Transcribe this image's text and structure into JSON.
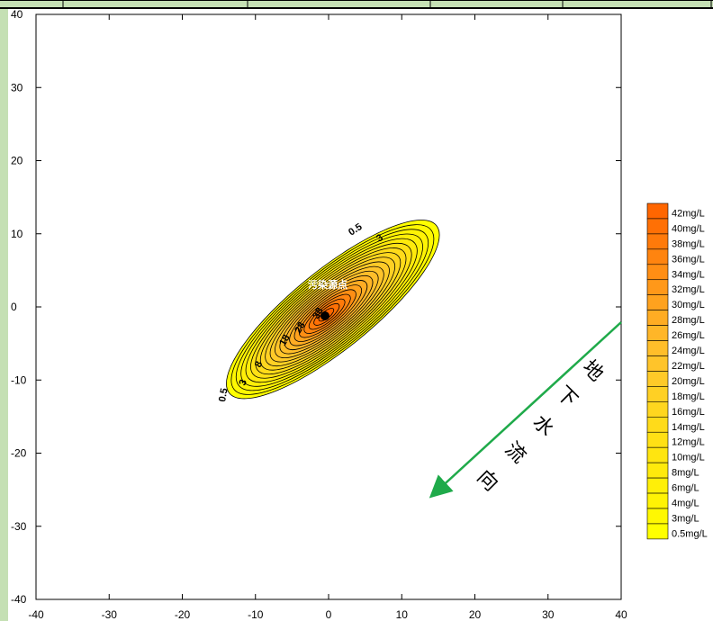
{
  "chart_data": {
    "type": "contour",
    "x_ticks": [
      "-40",
      "-30",
      "-20",
      "-10",
      "0",
      "10",
      "20",
      "30",
      "40"
    ],
    "y_ticks": [
      "40",
      "30",
      "20",
      "10",
      "0",
      "-10",
      "-20",
      "-30",
      "-40"
    ],
    "xlim": [
      -40,
      40
    ],
    "ylim": [
      -40,
      40
    ],
    "contour_labels": [
      "0.5",
      "3",
      "0.5",
      "3",
      "8",
      "18",
      "28",
      "38"
    ],
    "source_label": "污染源点",
    "flow_direction_label": [
      "地",
      "下",
      "水",
      "流",
      "向"
    ],
    "legend": {
      "entries": [
        "42mg/L",
        "40mg/L",
        "38mg/L",
        "36mg/L",
        "34mg/L",
        "32mg/L",
        "30mg/L",
        "28mg/L",
        "26mg/L",
        "24mg/L",
        "22mg/L",
        "20mg/L",
        "18mg/L",
        "16mg/L",
        "14mg/L",
        "12mg/L",
        "10mg/L",
        "8mg/L",
        "6mg/L",
        "4mg/L",
        "3mg/L",
        "0.5mg/L"
      ],
      "colors": [
        "#ff6600",
        "#ff7005",
        "#ff7a0a",
        "#ff840f",
        "#ff8e14",
        "#ff9819",
        "#ffa21e",
        "#ffac23",
        "#ffb628",
        "#ffbe2a",
        "#ffc42a",
        "#ffca28",
        "#ffd024",
        "#ffd61f",
        "#ffdb1a",
        "#ffe015",
        "#ffe510",
        "#ffea0c",
        "#ffef08",
        "#fff305",
        "#fff802",
        "#ffff00"
      ],
      "placement": "right"
    },
    "flow_arrow_color": "#1faa4a"
  }
}
